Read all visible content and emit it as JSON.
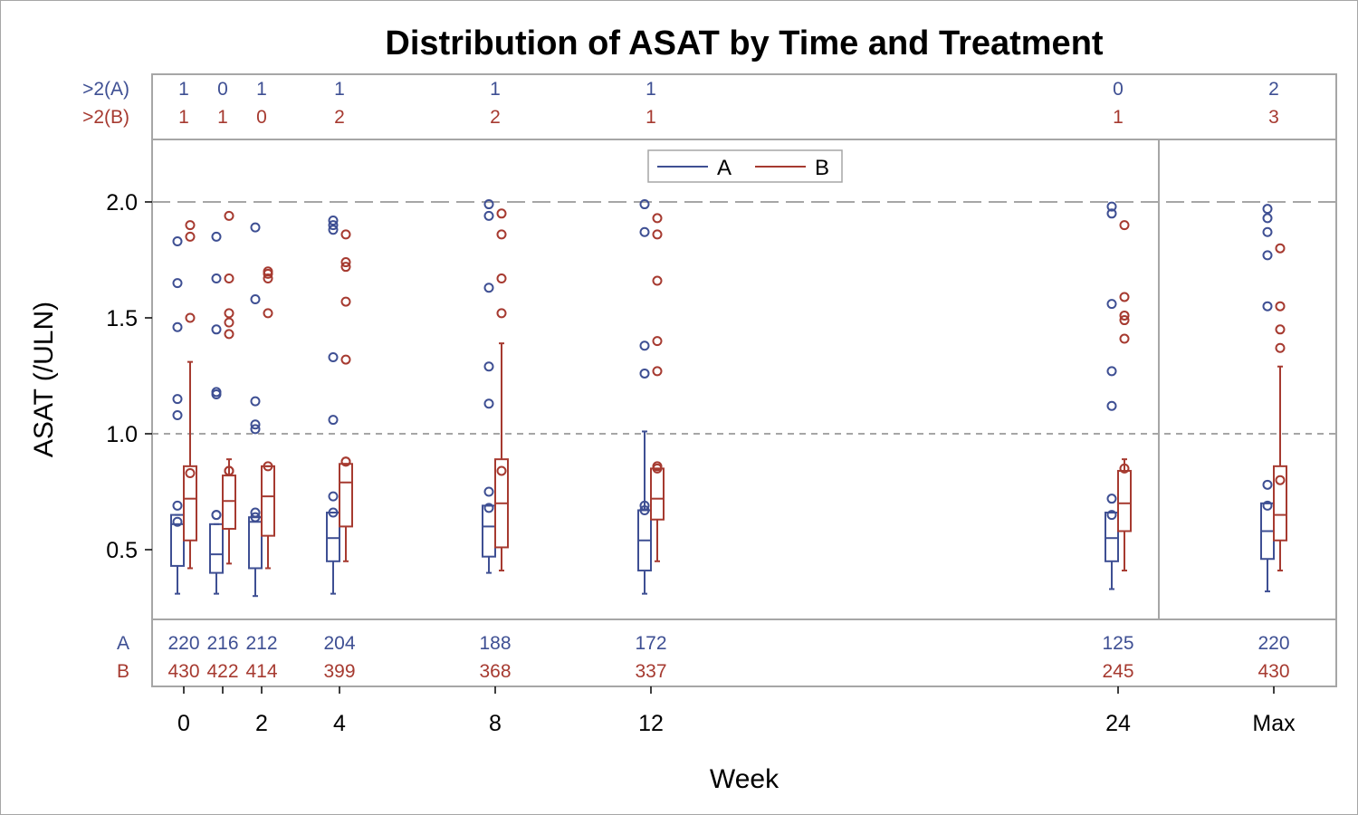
{
  "colors": {
    "A": "#3e4f93",
    "B": "#a63a30",
    "frame": "#a6a6a6",
    "ref_line": "#a6a6a6",
    "text": "#000000"
  },
  "chart_data": {
    "type": "box",
    "title": "Distribution of ASAT by Time and Treatment",
    "xlabel": "Week",
    "ylabel": "ASAT (/ULN)",
    "yticks": [
      "0.5",
      "1.0",
      "1.5",
      "2.0"
    ],
    "ylim": [
      0.25,
      2.27
    ],
    "reference_lines": [
      1.0,
      2.0
    ],
    "legend": {
      "placement": "top-center",
      "entries": [
        "A",
        "B"
      ]
    },
    "categories": [
      "0",
      "1",
      "2",
      "4",
      "8",
      "12",
      "24",
      "Max"
    ],
    "x_tick_labels": [
      "0",
      "",
      "2",
      "4",
      "8",
      "12",
      "24",
      "Max"
    ],
    "x_positions": [
      0,
      1,
      2,
      4,
      8,
      12,
      24,
      28
    ],
    "count_table_top": {
      "row_labels": [
        ">2(A)",
        ">2(B)"
      ],
      "A": [
        "1",
        "0",
        "1",
        "1",
        "1",
        "1",
        "0",
        "2"
      ],
      "B": [
        "1",
        "1",
        "0",
        "2",
        "2",
        "1",
        "1",
        "3"
      ]
    },
    "count_table_bottom": {
      "row_labels": [
        "A",
        "B"
      ],
      "A": [
        "220",
        "216",
        "212",
        "204",
        "188",
        "172",
        "125",
        "220"
      ],
      "B": [
        "430",
        "422",
        "414",
        "399",
        "368",
        "337",
        "245",
        "430"
      ]
    },
    "series": [
      {
        "name": "A",
        "boxes": [
          {
            "min": 0.31,
            "q1": 0.43,
            "median": 0.61,
            "q3": 0.65,
            "max": 0.65,
            "mean": 0.62,
            "outliers": [
              0.69,
              1.08,
              1.15,
              1.46,
              1.65,
              1.83
            ]
          },
          {
            "min": 0.31,
            "q1": 0.4,
            "median": 0.48,
            "q3": 0.61,
            "max": 0.61,
            "mean": 0.65,
            "outliers": [
              0.65,
              1.17,
              1.18,
              1.45,
              1.67,
              1.85
            ]
          },
          {
            "min": 0.3,
            "q1": 0.42,
            "median": 0.62,
            "q3": 0.64,
            "max": 0.64,
            "mean": 0.64,
            "outliers": [
              0.66,
              1.02,
              1.04,
              1.14,
              1.58,
              1.89
            ]
          },
          {
            "min": 0.31,
            "q1": 0.45,
            "median": 0.55,
            "q3": 0.66,
            "max": 0.66,
            "mean": 0.66,
            "outliers": [
              0.73,
              1.06,
              1.33,
              1.88,
              1.9,
              1.92
            ]
          },
          {
            "min": 0.4,
            "q1": 0.47,
            "median": 0.6,
            "q3": 0.69,
            "max": 0.69,
            "mean": 0.68,
            "outliers": [
              0.75,
              1.13,
              1.29,
              1.63,
              1.94,
              1.99
            ]
          },
          {
            "min": 0.31,
            "q1": 0.41,
            "median": 0.54,
            "q3": 0.67,
            "max": 1.01,
            "mean": 0.67,
            "outliers": [
              0.69,
              1.26,
              1.38,
              1.87,
              1.99
            ]
          },
          {
            "min": 0.33,
            "q1": 0.45,
            "median": 0.55,
            "q3": 0.66,
            "max": 0.66,
            "mean": 0.65,
            "outliers": [
              0.72,
              1.12,
              1.27,
              1.56,
              1.95,
              1.98
            ]
          },
          {
            "min": 0.32,
            "q1": 0.46,
            "median": 0.58,
            "q3": 0.7,
            "max": 0.7,
            "mean": 0.69,
            "outliers": [
              0.78,
              1.55,
              1.77,
              1.87,
              1.93,
              1.97
            ]
          }
        ]
      },
      {
        "name": "B",
        "boxes": [
          {
            "min": 0.42,
            "q1": 0.54,
            "median": 0.72,
            "q3": 0.86,
            "max": 1.31,
            "mean": 0.83,
            "outliers": [
              1.5,
              1.85,
              1.9
            ]
          },
          {
            "min": 0.44,
            "q1": 0.59,
            "median": 0.71,
            "q3": 0.82,
            "max": 0.89,
            "mean": 0.84,
            "outliers": [
              0.84,
              1.43,
              1.48,
              1.52,
              1.67,
              1.94
            ]
          },
          {
            "min": 0.42,
            "q1": 0.56,
            "median": 0.73,
            "q3": 0.86,
            "max": 0.86,
            "mean": 0.86,
            "outliers": [
              1.52,
              1.67,
              1.69,
              1.7
            ]
          },
          {
            "min": 0.45,
            "q1": 0.6,
            "median": 0.79,
            "q3": 0.87,
            "max": 0.87,
            "mean": 0.88,
            "outliers": [
              0.88,
              1.32,
              1.57,
              1.72,
              1.74,
              1.86
            ]
          },
          {
            "min": 0.41,
            "q1": 0.51,
            "median": 0.7,
            "q3": 0.89,
            "max": 1.39,
            "mean": 0.84,
            "outliers": [
              1.52,
              1.67,
              1.86,
              1.95
            ]
          },
          {
            "min": 0.45,
            "q1": 0.63,
            "median": 0.72,
            "q3": 0.85,
            "max": 0.85,
            "mean": 0.85,
            "outliers": [
              0.86,
              1.27,
              1.4,
              1.66,
              1.86,
              1.93
            ]
          },
          {
            "min": 0.41,
            "q1": 0.58,
            "median": 0.7,
            "q3": 0.84,
            "max": 0.89,
            "mean": 0.85,
            "outliers": [
              1.41,
              1.49,
              1.51,
              1.59,
              1.9
            ]
          },
          {
            "min": 0.41,
            "q1": 0.54,
            "median": 0.65,
            "q3": 0.86,
            "max": 1.29,
            "mean": 0.8,
            "outliers": [
              1.37,
              1.45,
              1.55,
              1.8
            ]
          }
        ]
      }
    ]
  }
}
